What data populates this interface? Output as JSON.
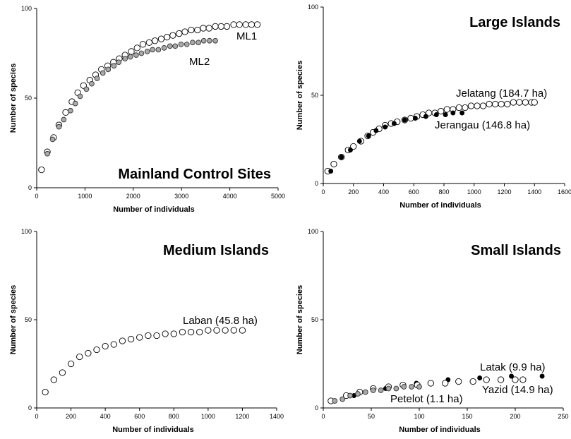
{
  "chart_data": [
    {
      "type": "scatter",
      "title": "Mainland Control Sites",
      "xlabel": "Number of individuals",
      "ylabel": "Number of species",
      "xlim": [
        0,
        5000
      ],
      "ylim": [
        0,
        100
      ],
      "xticks": [
        0,
        1000,
        2000,
        3000,
        4000,
        5000
      ],
      "yticks": [
        0,
        50,
        100
      ],
      "grid": false,
      "series": [
        {
          "name": "ML1",
          "marker": "open",
          "x": [
            100,
            220,
            350,
            460,
            600,
            730,
            850,
            970,
            1100,
            1220,
            1340,
            1470,
            1590,
            1710,
            1830,
            1960,
            2080,
            2200,
            2330,
            2450,
            2580,
            2700,
            2820,
            2950,
            3070,
            3200,
            3330,
            3450,
            3570,
            3700,
            3820,
            3940,
            4080,
            4200,
            4330,
            4450,
            4570
          ],
          "y": [
            10,
            20,
            28,
            35,
            42,
            48,
            53,
            57,
            60,
            63,
            66,
            68,
            70,
            72,
            74,
            76,
            78,
            80,
            81,
            82,
            83,
            84,
            85,
            86,
            87,
            88,
            88,
            89,
            89,
            90,
            90,
            90,
            91,
            91,
            91,
            91,
            91
          ]
        },
        {
          "name": "ML2",
          "marker": "grey",
          "x": [
            220,
            330,
            460,
            560,
            700,
            800,
            900,
            1030,
            1140,
            1250,
            1370,
            1480,
            1600,
            1700,
            1830,
            1940,
            2060,
            2170,
            2290,
            2400,
            2520,
            2640,
            2760,
            2870,
            2990,
            3110,
            3230,
            3350,
            3460,
            3580,
            3700
          ],
          "y": [
            19,
            27,
            34,
            38,
            43,
            47,
            51,
            55,
            58,
            61,
            64,
            66,
            68,
            70,
            72,
            73,
            74,
            75,
            76,
            77,
            77,
            78,
            79,
            79,
            80,
            80,
            81,
            81,
            82,
            82,
            82
          ]
        }
      ],
      "annotations": [
        "ML1",
        "ML2"
      ]
    },
    {
      "type": "scatter",
      "title": "Large Islands",
      "xlabel": "Number of individuals",
      "ylabel": "Number of species",
      "xlim": [
        0,
        1600
      ],
      "ylim": [
        0,
        100
      ],
      "xticks": [
        0,
        200,
        400,
        600,
        800,
        1000,
        1200,
        1400,
        1600
      ],
      "yticks": [
        0,
        50,
        100
      ],
      "grid": false,
      "series": [
        {
          "name": "Jelatang (184.7 ha)",
          "marker": "open",
          "x": [
            30,
            70,
            120,
            165,
            200,
            250,
            295,
            330,
            370,
            410,
            450,
            490,
            540,
            580,
            620,
            660,
            700,
            740,
            780,
            820,
            860,
            900,
            940,
            980,
            1020,
            1060,
            1100,
            1140,
            1180,
            1220,
            1260,
            1300,
            1340,
            1380,
            1400
          ],
          "y": [
            7,
            11,
            15,
            19,
            21,
            24,
            27,
            29,
            31,
            33,
            34,
            35,
            36,
            37,
            38,
            39,
            40,
            40,
            41,
            42,
            42,
            43,
            43,
            44,
            44,
            44,
            45,
            45,
            45,
            45,
            46,
            46,
            46,
            46,
            46
          ]
        },
        {
          "name": "Jerangau (146.8 ha)",
          "marker": "filled",
          "x": [
            50,
            120,
            180,
            240,
            300,
            350,
            410,
            470,
            540,
            610,
            680,
            750,
            810,
            860,
            920
          ],
          "y": [
            7,
            15,
            19,
            24,
            27,
            30,
            32,
            34,
            36,
            37,
            38,
            39,
            39,
            40,
            40
          ]
        }
      ],
      "annotations": [
        "Jelatang (184.7 ha)",
        "Jerangau (146.8 ha)"
      ]
    },
    {
      "type": "scatter",
      "title": "Medium Islands",
      "xlabel": "Number of individuals",
      "ylabel": "Number of species",
      "xlim": [
        0,
        1400
      ],
      "ylim": [
        0,
        100
      ],
      "xticks": [
        0,
        200,
        400,
        600,
        800,
        1000,
        1200,
        1400
      ],
      "yticks": [
        0,
        50,
        100
      ],
      "grid": false,
      "series": [
        {
          "name": "Laban (45.8 ha)",
          "marker": "open",
          "x": [
            50,
            100,
            150,
            200,
            250,
            300,
            350,
            400,
            450,
            500,
            550,
            600,
            650,
            700,
            750,
            800,
            850,
            900,
            950,
            1000,
            1050,
            1100,
            1150,
            1200
          ],
          "y": [
            9,
            16,
            20,
            25,
            29,
            31,
            33,
            35,
            36,
            38,
            39,
            40,
            41,
            41,
            42,
            42,
            43,
            43,
            43,
            44,
            44,
            44,
            44,
            44
          ]
        }
      ],
      "annotations": [
        "Laban (45.8 ha)"
      ]
    },
    {
      "type": "scatter",
      "title": "Small Islands",
      "xlabel": "Number of individuals",
      "ylabel": "Number of species",
      "xlim": [
        0,
        250
      ],
      "ylim": [
        0,
        100
      ],
      "xticks": [
        0,
        50,
        100,
        150,
        200,
        250
      ],
      "yticks": [
        0,
        50,
        100
      ],
      "grid": false,
      "series": [
        {
          "name": "Latak (9.9 ha)",
          "marker": "filled",
          "x": [
            10,
            32,
            65,
            97,
            130,
            163,
            196,
            228
          ],
          "y": [
            4,
            7,
            11,
            14,
            16,
            17,
            18,
            18
          ]
        },
        {
          "name": "Yazid (14.9 ha)",
          "marker": "open",
          "x": [
            8,
            24,
            38,
            52,
            68,
            83,
            98,
            112,
            127,
            141,
            156,
            170,
            185,
            200,
            208
          ],
          "y": [
            4,
            7,
            9,
            11,
            12,
            13,
            13,
            14,
            14,
            15,
            15,
            16,
            16,
            16,
            16
          ]
        },
        {
          "name": "Petelot (1.1 ha)",
          "marker": "grey",
          "x": [
            12,
            20,
            28,
            36,
            44,
            52,
            60,
            68,
            76,
            84,
            92,
            100
          ],
          "y": [
            4,
            5,
            7,
            8,
            9,
            10,
            10,
            11,
            11,
            12,
            12,
            12
          ]
        }
      ],
      "annotations": [
        "Latak (9.9 ha)",
        "Yazid (14.9 ha)",
        "Petelot (1.1 ha)"
      ]
    }
  ]
}
